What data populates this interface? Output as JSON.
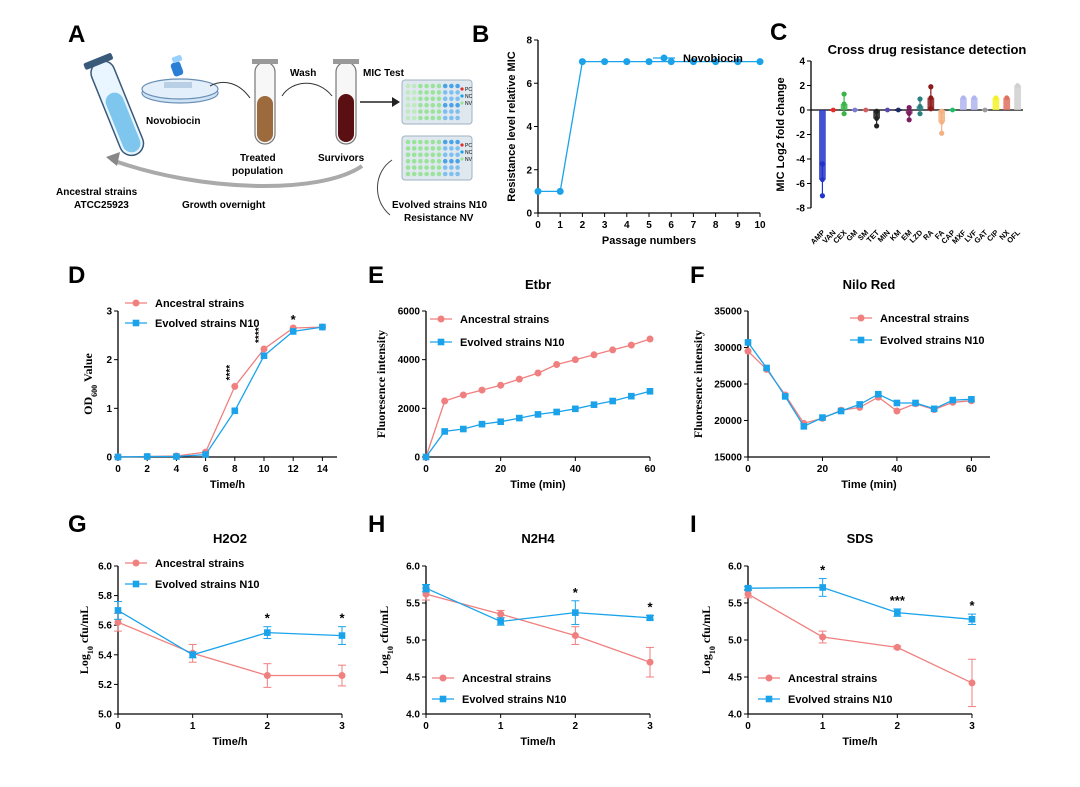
{
  "colors": {
    "ancestral": "#f07f7f",
    "evolved": "#1aa3ea",
    "axis": "#000000",
    "c_bar": "#2234c8"
  },
  "schematic": {
    "panel_label": "A",
    "novobiocin": "Novobiocin",
    "wash": "Wash",
    "mic_test": "MIC Test",
    "treated": "Treated",
    "population": "population",
    "survivors": "Survivors",
    "ancestral_line1": "Ancestral strains",
    "ancestral_line2": "ATCC25923",
    "growth": "Growth overnight",
    "evolved_line1": "Evolved strains N10",
    "evolved_line2": "Resistance NV",
    "plate_legend": [
      "PC",
      "NC",
      "NV"
    ]
  },
  "chart_data": [
    {
      "panel": "B",
      "type": "line",
      "title": "",
      "xlabel": "Passage numbers",
      "ylabel": "Resistance level relative MIC",
      "xlim": [
        0,
        10
      ],
      "ylim": [
        0,
        8
      ],
      "xticks": [
        0,
        1,
        2,
        3,
        4,
        5,
        6,
        7,
        8,
        9,
        10
      ],
      "yticks": [
        0,
        2,
        4,
        6,
        8
      ],
      "series": [
        {
          "name": "Novobiocin",
          "x": [
            0,
            1,
            2,
            3,
            4,
            5,
            6,
            7,
            8,
            9,
            10
          ],
          "y": [
            1,
            1,
            7,
            7,
            7,
            7,
            7,
            7,
            7,
            7,
            7
          ]
        }
      ]
    },
    {
      "panel": "C",
      "type": "bar",
      "title": "Cross drug resistance detection",
      "xlabel": "",
      "ylabel": "MIC Log2 fold change",
      "ylim": [
        -8,
        4
      ],
      "yticks": [
        -8,
        -6,
        -4,
        -2,
        0,
        2,
        4
      ],
      "categories": [
        "AMP",
        "VAN",
        "CEX",
        "GM",
        "SM",
        "TET",
        "MIN",
        "KM",
        "EM",
        "LZD",
        "RA",
        "FA",
        "CAP",
        "MXF",
        "LVF",
        "GAT",
        "CIP",
        "NX",
        "OFL"
      ],
      "values": [
        -5.7,
        0,
        0.5,
        0,
        0,
        -0.7,
        0,
        0,
        -0.3,
        0.3,
        1.0,
        -1.0,
        0,
        1.0,
        1.0,
        0,
        1.0,
        1.0,
        2.0
      ],
      "errors": [
        1.3,
        0,
        0.8,
        0,
        0,
        0.6,
        0,
        0,
        0.5,
        0.6,
        0.9,
        0.9,
        0,
        0,
        0,
        0,
        0,
        0,
        0
      ],
      "bar_colors": [
        "#2234c8",
        "#e0302a",
        "#3ab54a",
        "#7b7bd6",
        "#d25f5f",
        "#222222",
        "#5a4aa8",
        "#1c2a66",
        "#7a2060",
        "#2a7f7f",
        "#8b1a1a",
        "#f4b183",
        "#22bb66",
        "#b0b4f0",
        "#b0b4f0",
        "#9a9a9a",
        "#f2f22a",
        "#e07060",
        "#cfcfcf"
      ]
    },
    {
      "panel": "D",
      "type": "line",
      "title": "",
      "xlabel": "Time/h",
      "ylabel": "OD600 Value",
      "ylabel_main": "OD",
      "ylabel_sub": "600",
      "ylabel_rest": " Value",
      "xlim": [
        0,
        15
      ],
      "ylim": [
        0,
        3
      ],
      "xticks": [
        0,
        2,
        4,
        6,
        8,
        10,
        12,
        14
      ],
      "yticks": [
        0,
        1,
        2,
        3
      ],
      "legend": "top-left",
      "series": [
        {
          "name": "Ancestral strains",
          "x": [
            0,
            2,
            4,
            6,
            8,
            10,
            12,
            14
          ],
          "y": [
            0,
            0.01,
            0.02,
            0.1,
            1.45,
            2.22,
            2.65,
            2.67
          ]
        },
        {
          "name": "Evolved strains N10",
          "x": [
            0,
            2,
            4,
            6,
            8,
            10,
            12,
            14
          ],
          "y": [
            0,
            0.01,
            0.01,
            0.05,
            0.95,
            2.08,
            2.58,
            2.67
          ]
        }
      ],
      "annotations": [
        {
          "x": 8,
          "y": 1.45,
          "text": "****"
        },
        {
          "x": 10,
          "y": 2.22,
          "text": "****"
        },
        {
          "x": 12,
          "y": 2.65,
          "text": "*"
        }
      ]
    },
    {
      "panel": "E",
      "type": "line",
      "title": "Etbr",
      "xlabel": "Time (min)",
      "ylabel": "Fluoresence intensity",
      "xlim": [
        0,
        60
      ],
      "ylim": [
        0,
        6000
      ],
      "xticks": [
        0,
        20,
        40,
        60
      ],
      "yticks": [
        0,
        2000,
        4000,
        6000
      ],
      "legend": "top-left",
      "series": [
        {
          "name": "Ancestral strains",
          "x": [
            0,
            5,
            10,
            15,
            20,
            25,
            30,
            35,
            40,
            45,
            50,
            55,
            60
          ],
          "y": [
            0,
            2300,
            2550,
            2750,
            2950,
            3200,
            3450,
            3800,
            4000,
            4200,
            4400,
            4600,
            4850
          ]
        },
        {
          "name": "Evolved strains N10",
          "x": [
            0,
            5,
            10,
            15,
            20,
            25,
            30,
            35,
            40,
            45,
            50,
            55,
            60
          ],
          "y": [
            0,
            1050,
            1150,
            1350,
            1450,
            1600,
            1750,
            1850,
            1980,
            2150,
            2300,
            2500,
            2700
          ]
        }
      ]
    },
    {
      "panel": "F",
      "type": "line",
      "title": "Nilo Red",
      "xlabel": "Time (min)",
      "ylabel": "Fluoresence intensity",
      "xlim": [
        0,
        65
      ],
      "ylim": [
        15000,
        35000
      ],
      "xticks": [
        0,
        20,
        40,
        60
      ],
      "yticks": [
        15000,
        20000,
        25000,
        30000,
        35000
      ],
      "legend": "top-right",
      "series": [
        {
          "name": "Ancestral strains",
          "x": [
            0,
            5,
            10,
            15,
            20,
            25,
            30,
            35,
            40,
            45,
            50,
            55,
            60
          ],
          "y": [
            29500,
            27000,
            23500,
            19600,
            20300,
            21400,
            21800,
            23200,
            21300,
            22300,
            21500,
            22500,
            22700
          ]
        },
        {
          "name": "Evolved strains N10",
          "x": [
            0,
            5,
            10,
            15,
            20,
            25,
            30,
            35,
            40,
            45,
            50,
            55,
            60
          ],
          "y": [
            30700,
            27200,
            23300,
            19200,
            20400,
            21300,
            22200,
            23600,
            22400,
            22400,
            21600,
            22800,
            22900
          ]
        }
      ]
    },
    {
      "panel": "G",
      "type": "line",
      "title": "H2O2",
      "xlabel": "Time/h",
      "ylabel": "Log10 cfu/mL",
      "xlim": [
        0,
        3
      ],
      "ylim": [
        5.0,
        6.0
      ],
      "xticks": [
        0,
        1,
        2,
        3
      ],
      "yticks": [
        5.0,
        5.2,
        5.4,
        5.6,
        5.8,
        6.0
      ],
      "legend": "top-left",
      "series": [
        {
          "name": "Ancestral strains",
          "x": [
            0,
            1,
            2,
            3
          ],
          "y": [
            5.62,
            5.41,
            5.26,
            5.26
          ],
          "err": [
            0.06,
            0.06,
            0.08,
            0.07
          ]
        },
        {
          "name": "Evolved strains N10",
          "x": [
            0,
            1,
            2,
            3
          ],
          "y": [
            5.7,
            5.4,
            5.55,
            5.53
          ],
          "err": [
            0.06,
            0.02,
            0.04,
            0.06
          ]
        }
      ],
      "annotations": [
        {
          "x": 2,
          "text": "*"
        },
        {
          "x": 3,
          "text": "*"
        }
      ]
    },
    {
      "panel": "H",
      "type": "line",
      "title": "N2H4",
      "xlabel": "Time/h",
      "ylabel": "Log10 cfu/mL",
      "xlim": [
        0,
        3
      ],
      "ylim": [
        4.0,
        6.0
      ],
      "xticks": [
        0,
        1,
        2,
        3
      ],
      "yticks": [
        4.0,
        4.5,
        5.0,
        5.5,
        6.0
      ],
      "legend": "bottom-left",
      "series": [
        {
          "name": "Ancestral strains",
          "x": [
            0,
            1,
            2,
            3
          ],
          "y": [
            5.62,
            5.35,
            5.06,
            4.7
          ],
          "err": [
            0.08,
            0.05,
            0.12,
            0.2
          ]
        },
        {
          "name": "Evolved strains N10",
          "x": [
            0,
            1,
            2,
            3
          ],
          "y": [
            5.7,
            5.25,
            5.37,
            5.3
          ],
          "err": [
            0.05,
            0.05,
            0.16,
            0.03
          ]
        }
      ],
      "annotations": [
        {
          "x": 2,
          "text": "*"
        },
        {
          "x": 3,
          "text": "*"
        }
      ]
    },
    {
      "panel": "I",
      "type": "line",
      "title": "SDS",
      "xlabel": "Time/h",
      "ylabel": "Log10 cfu/mL",
      "xlim": [
        0,
        3
      ],
      "ylim": [
        4.0,
        6.0
      ],
      "xticks": [
        0,
        1,
        2,
        3
      ],
      "yticks": [
        4.0,
        4.5,
        5.0,
        5.5,
        6.0
      ],
      "legend": "bottom-left",
      "series": [
        {
          "name": "Ancestral strains",
          "x": [
            0,
            1,
            2,
            3
          ],
          "y": [
            5.62,
            5.04,
            4.9,
            4.42
          ],
          "err": [
            0.05,
            0.08,
            0.02,
            0.32
          ]
        },
        {
          "name": "Evolved strains N10",
          "x": [
            0,
            1,
            2,
            3
          ],
          "y": [
            5.7,
            5.71,
            5.37,
            5.28
          ],
          "err": [
            0.02,
            0.12,
            0.05,
            0.07
          ]
        }
      ],
      "annotations": [
        {
          "x": 1,
          "text": "*"
        },
        {
          "x": 2,
          "text": "***"
        },
        {
          "x": 3,
          "text": "*"
        }
      ]
    }
  ]
}
